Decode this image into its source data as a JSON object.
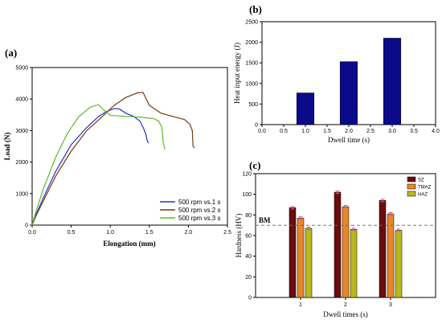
{
  "chart_data": [
    {
      "panel": "(a)",
      "type": "line",
      "xlabel": "Elongation (mm)",
      "ylabel": "Load (N)",
      "xlim": [
        0,
        2.5
      ],
      "ylim": [
        0,
        5000
      ],
      "xticks": [
        "0.0",
        "0.5",
        "1.0",
        "1.5",
        "2.0",
        "2.5"
      ],
      "yticks": [
        "0",
        "1000",
        "2000",
        "3000",
        "4000",
        "5000"
      ],
      "legend": "bottom-right",
      "series": [
        {
          "name": "500 rpm vs.1 s",
          "color": "#2233cc",
          "x": [
            0,
            0.05,
            0.15,
            0.3,
            0.5,
            0.7,
            0.85,
            0.95,
            1.05,
            1.12,
            1.2,
            1.3,
            1.38,
            1.43,
            1.46,
            1.47,
            1.49
          ],
          "y": [
            0,
            350,
            900,
            1700,
            2550,
            3100,
            3450,
            3600,
            3700,
            3680,
            3550,
            3450,
            3300,
            3050,
            2850,
            2700,
            2600
          ]
        },
        {
          "name": "500 rpm vs.2 s",
          "color": "#7a3a10",
          "x": [
            0,
            0.05,
            0.15,
            0.3,
            0.5,
            0.7,
            0.9,
            1.05,
            1.2,
            1.35,
            1.42,
            1.5,
            1.65,
            1.8,
            1.95,
            2.02,
            2.05,
            2.06,
            2.08
          ],
          "y": [
            0,
            300,
            800,
            1550,
            2350,
            3000,
            3450,
            3800,
            4050,
            4200,
            4210,
            3800,
            3550,
            3450,
            3350,
            3200,
            3000,
            2500,
            2450
          ]
        },
        {
          "name": "500 rpm vs.3 s",
          "color": "#5dbb2a",
          "x": [
            0,
            0.05,
            0.15,
            0.3,
            0.45,
            0.6,
            0.75,
            0.85,
            0.92,
            1.0,
            1.2,
            1.4,
            1.55,
            1.62,
            1.66,
            1.68,
            1.7
          ],
          "y": [
            0,
            450,
            1200,
            2150,
            2900,
            3450,
            3750,
            3820,
            3650,
            3480,
            3450,
            3420,
            3380,
            3300,
            3100,
            2600,
            2400
          ]
        }
      ]
    },
    {
      "panel": "(b)",
      "type": "bar",
      "xlabel": "Dwell time (s)",
      "ylabel": "Heat input energy (J)",
      "xlim": [
        0,
        4
      ],
      "ylim": [
        0,
        2500
      ],
      "xticks": [
        "0.0",
        "0.5",
        "1.0",
        "1.5",
        "2.0",
        "2.5",
        "3.0",
        "3.5",
        "4.0"
      ],
      "yticks": [
        "0",
        "500",
        "1000",
        "1500",
        "2000",
        "2500"
      ],
      "bar_color": "#0a0a8a",
      "x": [
        1,
        2,
        3
      ],
      "values": [
        770,
        1530,
        2100
      ]
    },
    {
      "panel": "(c)",
      "type": "bar",
      "xlabel": "Dwell times (s)",
      "ylabel": "Hardness (HV)",
      "ylim": [
        0,
        120
      ],
      "categories": [
        "1",
        "2",
        "3"
      ],
      "yticks": [
        "0",
        "20",
        "40",
        "60",
        "80",
        "100",
        "120"
      ],
      "legend": "top-right",
      "reference_line": {
        "label": "BM",
        "value": 70
      },
      "series": [
        {
          "name": "SZ",
          "color": "#6b0d0d",
          "values": [
            87,
            102,
            94
          ]
        },
        {
          "name": "TMAZ",
          "color": "#e8872a",
          "values": [
            77,
            88,
            81
          ]
        },
        {
          "name": "HAZ",
          "color": "#b8b81a",
          "values": [
            67,
            66,
            65
          ]
        }
      ]
    }
  ]
}
